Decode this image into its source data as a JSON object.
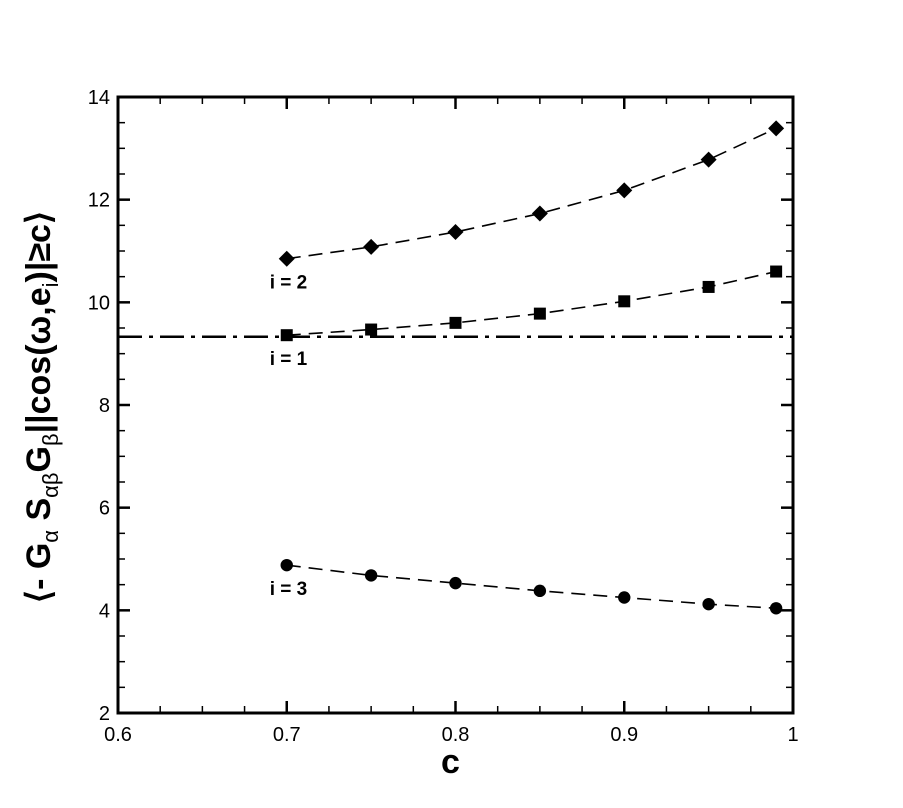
{
  "chart_data": {
    "type": "line",
    "xlabel": "c",
    "ylabel": {
      "parts": [
        {
          "t": "⟨- G",
          "sub": false
        },
        {
          "t": "α",
          "sub": true
        },
        {
          "t": " S",
          "sub": false
        },
        {
          "t": "αβ",
          "sub": true
        },
        {
          "t": "G",
          "sub": false
        },
        {
          "t": "β",
          "sub": true
        },
        {
          "t": "||cos(ω,e",
          "sub": false
        },
        {
          "t": "i",
          "sub": true
        },
        {
          "t": ")|≥c⟩",
          "sub": false
        }
      ]
    },
    "xlim": [
      0.6,
      1.0
    ],
    "ylim": [
      2,
      14
    ],
    "xticks": [
      0.6,
      0.7,
      0.8,
      0.9,
      1.0
    ],
    "xtick_labels": [
      "0.6",
      "0.7",
      "0.8",
      "0.9",
      "1"
    ],
    "yticks": [
      2,
      4,
      6,
      8,
      10,
      12,
      14
    ],
    "ytick_labels": [
      "2",
      "4",
      "6",
      "8",
      "10",
      "12",
      "14"
    ],
    "grid": false,
    "series": [
      {
        "name": "i = 2",
        "marker": "diamond",
        "line": "dashed",
        "x": [
          0.7,
          0.75,
          0.8,
          0.85,
          0.9,
          0.95,
          0.99
        ],
        "y": [
          10.85,
          11.08,
          11.37,
          11.73,
          12.18,
          12.78,
          13.39
        ]
      },
      {
        "name": "i = 1",
        "marker": "square",
        "line": "dashed",
        "x": [
          0.7,
          0.75,
          0.8,
          0.85,
          0.9,
          0.95,
          0.99
        ],
        "y": [
          9.36,
          9.47,
          9.6,
          9.78,
          10.02,
          10.3,
          10.6
        ]
      },
      {
        "name": "i = 3",
        "marker": "circle",
        "line": "dashed",
        "x": [
          0.7,
          0.75,
          0.8,
          0.85,
          0.9,
          0.95,
          0.99
        ],
        "y": [
          4.88,
          4.68,
          4.53,
          4.38,
          4.25,
          4.12,
          4.04
        ]
      }
    ],
    "reference_line": {
      "type": "dash-dot",
      "y": 9.33
    }
  }
}
